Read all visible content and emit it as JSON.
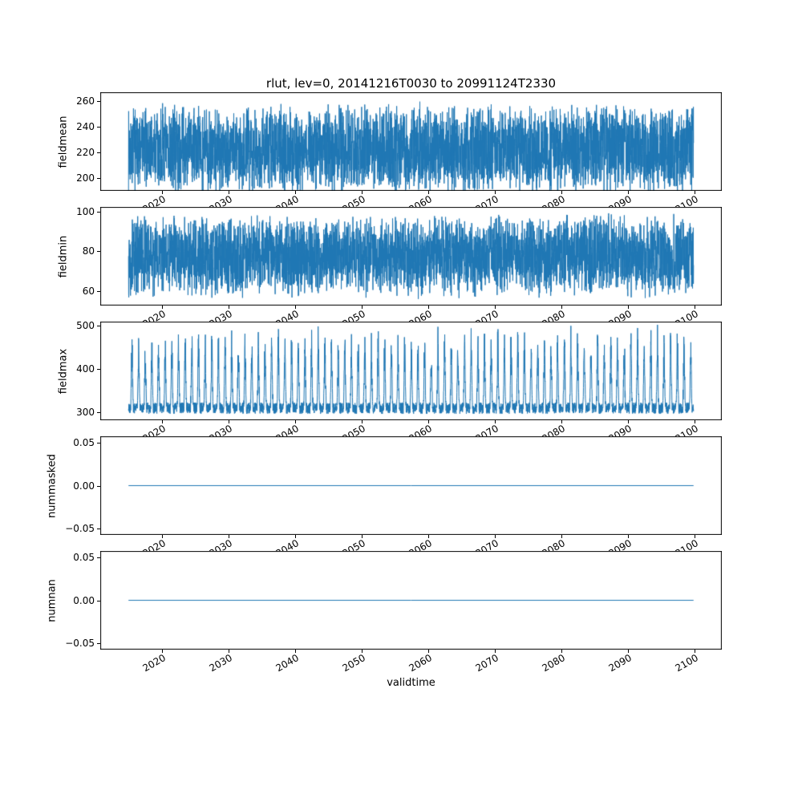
{
  "chart": {
    "title": "rlut, lev=0, 20141216T0030 to 20991124T2330",
    "xlabel": "validtime"
  },
  "chart_data": {
    "type": "line",
    "title": "rlut, lev=0, 20141216T0030 to 20991124T2330",
    "xlabel": "validtime",
    "variable": "rlut",
    "level": "lev=0",
    "time_start": "20141216T0030",
    "time_end": "20991124T2330",
    "x_range": [
      2014.96,
      2099.9
    ],
    "xlim": [
      2010.71,
      2104.15
    ],
    "xticks": [
      2020,
      2030,
      2040,
      2050,
      2060,
      2070,
      2080,
      2090,
      2100
    ],
    "xtick_labels": [
      "2020",
      "2030",
      "2040",
      "2050",
      "2060",
      "2070",
      "2080",
      "2090",
      "2100"
    ],
    "line_color": "#1f77b4",
    "axes_edge_color": "#000000",
    "background_color": "#ffffff",
    "grid": false,
    "legend": false,
    "points_rendered": 4000,
    "subplots": [
      {
        "ylabel": "fieldmean",
        "ylim": [
          190,
          267
        ],
        "yticks": [
          200,
          220,
          240,
          260
        ],
        "ytick_labels": [
          "200",
          "220",
          "240",
          "260"
        ],
        "series": {
          "name": "fieldmean",
          "gen": "noise",
          "center": 223,
          "amp1": 52,
          "amp2": 22,
          "approx_min": 193,
          "approx_max": 263,
          "approx_mean": 222
        }
      },
      {
        "ylabel": "fieldmin",
        "ylim": [
          52.5,
          102.5
        ],
        "yticks": [
          60,
          80,
          100
        ],
        "ytick_labels": [
          "60",
          "80",
          "100"
        ],
        "series": {
          "name": "fieldmin",
          "gen": "noise",
          "center": 77.5,
          "amp1": 30,
          "amp2": 14,
          "approx_min": 55,
          "approx_max": 100,
          "approx_mean": 78
        }
      },
      {
        "ylabel": "fieldmax",
        "ylim": [
          281,
          510
        ],
        "yticks": [
          300,
          400,
          500
        ],
        "ytick_labels": [
          "300",
          "400",
          "500"
        ],
        "series": {
          "name": "fieldmax",
          "gen": "seasonal-spike",
          "base": 296,
          "base_amp": 26,
          "spike_min": 85,
          "spike_amp": 100,
          "spike_phase": 0.23,
          "spike_sharpness": 3,
          "approx_min": 295,
          "approx_max": 505,
          "approx_mean": 330
        }
      },
      {
        "ylabel": "nummasked",
        "ylim": [
          -0.057,
          0.057
        ],
        "yticks": [
          0.05,
          0.0,
          -0.05
        ],
        "ytick_labels": [
          "0.05",
          "0.00",
          "−0.05"
        ],
        "series": {
          "name": "nummasked",
          "gen": "flat",
          "value": 0.0,
          "approx_min": 0,
          "approx_max": 0,
          "approx_mean": 0
        }
      },
      {
        "ylabel": "numnan",
        "ylim": [
          -0.057,
          0.057
        ],
        "yticks": [
          0.05,
          0.0,
          -0.05
        ],
        "ytick_labels": [
          "0.05",
          "0.00",
          "−0.05"
        ],
        "series": {
          "name": "numnan",
          "gen": "flat",
          "value": 0.0,
          "approx_min": 0,
          "approx_max": 0,
          "approx_mean": 0
        }
      }
    ]
  }
}
